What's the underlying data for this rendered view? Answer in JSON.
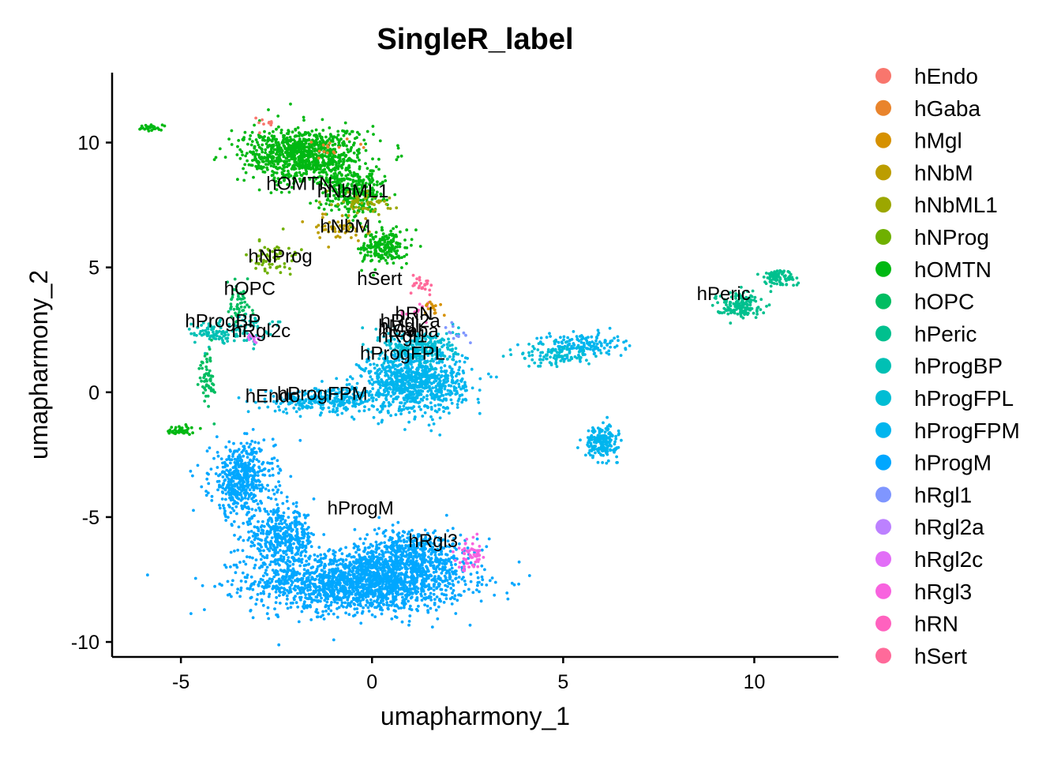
{
  "chart_data": {
    "type": "scatter",
    "title": "SingleR_label",
    "xlabel": "umapharmony_1",
    "ylabel": "umapharmony_2",
    "xlim": [
      -6.8,
      12.2
    ],
    "ylim": [
      -10.6,
      12.8
    ],
    "xticks": [
      -5,
      0,
      5,
      10
    ],
    "yticks": [
      -10,
      -5,
      0,
      5,
      10
    ],
    "grid": false,
    "legend_position": "right",
    "legend": [
      {
        "label": "hEndo",
        "color": "#F8766D"
      },
      {
        "label": "hGaba",
        "color": "#E9842C"
      },
      {
        "label": "hMgl",
        "color": "#D69100"
      },
      {
        "label": "hNbM",
        "color": "#BC9D00"
      },
      {
        "label": "hNbML1",
        "color": "#9CA700"
      },
      {
        "label": "hNProg",
        "color": "#6FB000"
      },
      {
        "label": "hOMTN",
        "color": "#00B813"
      },
      {
        "label": "hOPC",
        "color": "#00BD61"
      },
      {
        "label": "hPeric",
        "color": "#00C08E"
      },
      {
        "label": "hProgBP",
        "color": "#00C0B4"
      },
      {
        "label": "hProgFPL",
        "color": "#00BDD4"
      },
      {
        "label": "hProgFPM",
        "color": "#00B5EE"
      },
      {
        "label": "hProgM",
        "color": "#00A7FF"
      },
      {
        "label": "hRgl1",
        "color": "#7F96FF"
      },
      {
        "label": "hRgl2a",
        "color": "#BC81FF"
      },
      {
        "label": "hRgl2c",
        "color": "#E26EF7"
      },
      {
        "label": "hRgl3",
        "color": "#F863DF"
      },
      {
        "label": "hRN",
        "color": "#FF62BF"
      },
      {
        "label": "hSert",
        "color": "#FF6A9A"
      }
    ],
    "cluster_labels": [
      {
        "text": "hOMTN",
        "x": -1.9,
        "y": 8.1
      },
      {
        "text": "hNbML1",
        "x": -0.5,
        "y": 7.8
      },
      {
        "text": "hNbM",
        "x": -0.7,
        "y": 6.4
      },
      {
        "text": "hNProg",
        "x": -2.4,
        "y": 5.2
      },
      {
        "text": "hSert",
        "x": 0.2,
        "y": 4.3
      },
      {
        "text": "hOPC",
        "x": -3.2,
        "y": 3.9
      },
      {
        "text": "hProgBP",
        "x": -3.9,
        "y": 2.6
      },
      {
        "text": "hRgl2c",
        "x": -2.9,
        "y": 2.2
      },
      {
        "text": "hRN",
        "x": 1.1,
        "y": 2.9
      },
      {
        "text": "hRgl2a",
        "x": 1.0,
        "y": 2.6
      },
      {
        "text": "hMgl",
        "x": 0.7,
        "y": 2.4
      },
      {
        "text": "hGaba",
        "x": 1.0,
        "y": 2.2
      },
      {
        "text": "hRgl1",
        "x": 0.8,
        "y": 2.0
      },
      {
        "text": "hProgFPL",
        "x": 0.8,
        "y": 1.3
      },
      {
        "text": "hProgFPM",
        "x": -1.3,
        "y": -0.3
      },
      {
        "text": "hEndo",
        "x": -2.6,
        "y": -0.4
      },
      {
        "text": "hProgM",
        "x": -0.3,
        "y": -4.9
      },
      {
        "text": "hRgl3",
        "x": 1.6,
        "y": -6.2
      },
      {
        "text": "hPeric",
        "x": 9.2,
        "y": 3.7
      }
    ],
    "regions": [
      {
        "label": "hProgM",
        "cx": -0.3,
        "cy": -7.6,
        "sx": 2.3,
        "sy": 1.0,
        "weight": 1800
      },
      {
        "label": "hProgM",
        "cx": 1.0,
        "cy": -6.5,
        "sx": 1.2,
        "sy": 0.9,
        "weight": 500
      },
      {
        "label": "hProgM",
        "cx": -3.4,
        "cy": -3.5,
        "sx": 0.7,
        "sy": 1.2,
        "weight": 500
      },
      {
        "label": "hProgM",
        "cx": -2.4,
        "cy": -5.8,
        "sx": 0.8,
        "sy": 0.9,
        "weight": 400
      },
      {
        "label": "hProgFPM",
        "cx": 1.1,
        "cy": 0.4,
        "sx": 1.1,
        "sy": 1.0,
        "weight": 900
      },
      {
        "label": "hProgFPM",
        "cx": -1.2,
        "cy": -0.3,
        "sx": 1.3,
        "sy": 0.4,
        "weight": 300
      },
      {
        "label": "hProgFPM",
        "cx": 6.0,
        "cy": -2.0,
        "sx": 0.35,
        "sy": 0.5,
        "weight": 200
      },
      {
        "label": "hProgFPM",
        "cx": 5.5,
        "cy": 1.9,
        "sx": 0.9,
        "sy": 0.4,
        "weight": 150
      },
      {
        "label": "hProgFPL",
        "cx": 1.3,
        "cy": 1.8,
        "sx": 0.8,
        "sy": 0.6,
        "weight": 250
      },
      {
        "label": "hProgFPL",
        "cx": 4.8,
        "cy": 1.5,
        "sx": 0.8,
        "sy": 0.4,
        "weight": 100
      },
      {
        "label": "hProgBP",
        "cx": -4.2,
        "cy": 2.4,
        "sx": 0.4,
        "sy": 0.4,
        "weight": 80
      },
      {
        "label": "hProgBP",
        "cx": -3.3,
        "cy": 2.6,
        "sx": 0.5,
        "sy": 0.5,
        "weight": 60
      },
      {
        "label": "hPeric",
        "cx": 9.6,
        "cy": 3.5,
        "sx": 0.5,
        "sy": 0.4,
        "weight": 150
      },
      {
        "label": "hPeric",
        "cx": 10.6,
        "cy": 4.6,
        "sx": 0.4,
        "sy": 0.3,
        "weight": 80
      },
      {
        "label": "hOMTN",
        "cx": -1.8,
        "cy": 9.5,
        "sx": 1.3,
        "sy": 0.9,
        "weight": 900
      },
      {
        "label": "hOMTN",
        "cx": -0.5,
        "cy": 8.0,
        "sx": 0.7,
        "sy": 0.8,
        "weight": 300
      },
      {
        "label": "hOMTN",
        "cx": 0.3,
        "cy": 5.8,
        "sx": 0.5,
        "sy": 0.6,
        "weight": 200
      },
      {
        "label": "hOMTN",
        "cx": -5.8,
        "cy": 10.6,
        "sx": 0.2,
        "sy": 0.1,
        "weight": 30
      },
      {
        "label": "hOMTN",
        "cx": -5.0,
        "cy": -1.5,
        "sx": 0.3,
        "sy": 0.15,
        "weight": 40
      },
      {
        "label": "hNbML1",
        "cx": -0.2,
        "cy": 7.6,
        "sx": 0.6,
        "sy": 0.4,
        "weight": 60
      },
      {
        "label": "hNbM",
        "cx": -0.8,
        "cy": 6.6,
        "sx": 0.6,
        "sy": 0.4,
        "weight": 50
      },
      {
        "label": "hNProg",
        "cx": -2.6,
        "cy": 5.4,
        "sx": 0.5,
        "sy": 0.6,
        "weight": 60
      },
      {
        "label": "hOPC",
        "cx": -3.5,
        "cy": 3.6,
        "sx": 0.3,
        "sy": 0.6,
        "weight": 50
      },
      {
        "label": "hOPC",
        "cx": -4.3,
        "cy": 0.6,
        "sx": 0.15,
        "sy": 1.0,
        "weight": 60
      },
      {
        "label": "hSert",
        "cx": 1.3,
        "cy": 4.3,
        "sx": 0.3,
        "sy": 0.3,
        "weight": 25
      },
      {
        "label": "hRN",
        "cx": 1.2,
        "cy": 3.2,
        "sx": 0.3,
        "sy": 0.3,
        "weight": 15
      },
      {
        "label": "hRgl3",
        "cx": 2.6,
        "cy": -6.5,
        "sx": 0.3,
        "sy": 0.5,
        "weight": 60
      },
      {
        "label": "hRgl2c",
        "cx": -3.1,
        "cy": 2.2,
        "sx": 0.2,
        "sy": 0.2,
        "weight": 12
      },
      {
        "label": "hMgl",
        "cx": 1.6,
        "cy": 3.4,
        "sx": 0.3,
        "sy": 0.3,
        "weight": 15
      },
      {
        "label": "hEndo",
        "cx": -2.8,
        "cy": 10.8,
        "sx": 0.4,
        "sy": 0.3,
        "weight": 10
      },
      {
        "label": "hGaba",
        "cx": -1.0,
        "cy": 9.7,
        "sx": 0.6,
        "sy": 0.4,
        "weight": 15
      },
      {
        "label": "hRgl1",
        "cx": 2.2,
        "cy": 2.4,
        "sx": 0.3,
        "sy": 0.3,
        "weight": 12
      }
    ]
  }
}
